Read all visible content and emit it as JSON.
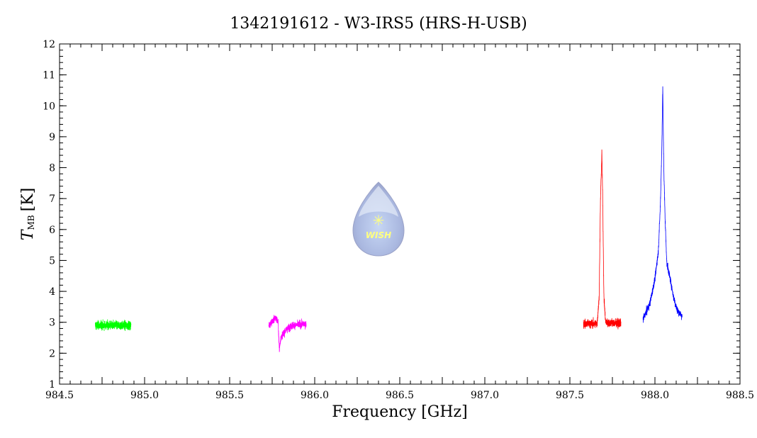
{
  "chart_data": {
    "type": "line",
    "title": "1342191612 - W3-IRS5 (HRS-H-USB)",
    "xlabel": "Frequency [GHz]",
    "ylabel_main": "T",
    "ylabel_sub": "MB",
    "ylabel_unit": "[K]",
    "xlim": [
      984.5,
      988.5
    ],
    "ylim": [
      1,
      12
    ],
    "xticks": [
      "984.5",
      "985.0",
      "985.5",
      "986.0",
      "986.5",
      "987.0",
      "987.5",
      "988.0",
      "988.5"
    ],
    "yticks": [
      "1",
      "2",
      "3",
      "4",
      "5",
      "6",
      "7",
      "8",
      "9",
      "10",
      "11",
      "12"
    ],
    "grid": false,
    "logo_text": "WISH",
    "series": [
      {
        "name": "green",
        "color": "#00ff00",
        "noise": 0.12,
        "profile": [
          [
            984.71,
            2.9
          ],
          [
            984.92,
            2.9
          ]
        ]
      },
      {
        "name": "magenta",
        "color": "#ff00ff",
        "noise": 0.1,
        "profile": [
          [
            985.73,
            2.9
          ],
          [
            985.77,
            3.15
          ],
          [
            985.785,
            3.0
          ],
          [
            985.792,
            2.1
          ],
          [
            985.8,
            2.5
          ],
          [
            985.83,
            2.75
          ],
          [
            985.87,
            2.9
          ],
          [
            985.95,
            2.95
          ]
        ]
      },
      {
        "name": "red",
        "color": "#ff0000",
        "noise": 0.12,
        "profile": [
          [
            987.58,
            2.95
          ],
          [
            987.66,
            2.95
          ],
          [
            987.672,
            3.8
          ],
          [
            987.68,
            7.0
          ],
          [
            987.688,
            8.5
          ],
          [
            987.693,
            7.0
          ],
          [
            987.7,
            3.8
          ],
          [
            987.71,
            3.0
          ],
          [
            987.8,
            2.95
          ]
        ]
      },
      {
        "name": "blue",
        "color": "#0000ff",
        "noise": 0.1,
        "profile": [
          [
            987.93,
            3.1
          ],
          [
            987.97,
            3.6
          ],
          [
            988.0,
            4.4
          ],
          [
            988.02,
            5.3
          ],
          [
            988.032,
            6.8
          ],
          [
            988.04,
            8.5
          ],
          [
            988.046,
            10.6
          ],
          [
            988.052,
            8.0
          ],
          [
            988.06,
            6.3
          ],
          [
            988.07,
            4.9
          ],
          [
            988.09,
            4.4
          ],
          [
            988.11,
            3.8
          ],
          [
            988.13,
            3.4
          ],
          [
            988.16,
            3.2
          ]
        ]
      }
    ]
  }
}
